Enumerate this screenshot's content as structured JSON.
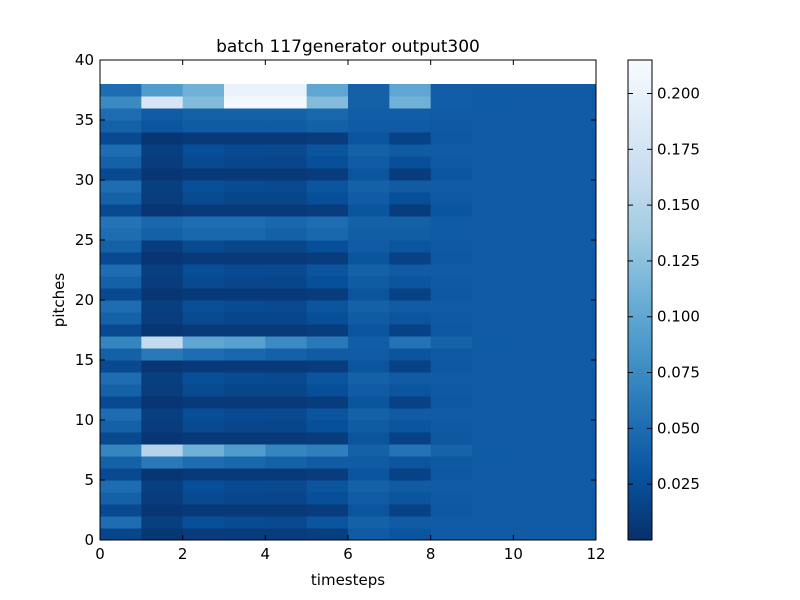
{
  "chart_data": {
    "type": "heatmap",
    "title": "batch 117generator output300",
    "xlabel": "timesteps",
    "ylabel": "pitches",
    "xlim": [
      0,
      12
    ],
    "ylim": [
      0,
      40
    ],
    "x_ticks": [
      0,
      2,
      4,
      6,
      8,
      10,
      12
    ],
    "y_ticks": [
      0,
      5,
      10,
      15,
      20,
      25,
      30,
      35,
      40
    ],
    "colormap": "Blues_r",
    "colorbar": {
      "min": 0.0,
      "max": 0.215,
      "ticks": [
        0.025,
        0.05,
        0.075,
        0.1,
        0.125,
        0.15,
        0.175,
        0.2
      ],
      "tick_labels": [
        "0.025",
        "0.050",
        "0.075",
        "0.100",
        "0.125",
        "0.150",
        "0.175",
        "0.200"
      ]
    },
    "grid": false,
    "rows_bottom_to_top": [
      [
        0.018,
        0.006,
        0.01,
        0.01,
        0.01,
        0.012,
        0.035,
        0.03,
        0.035,
        0.035,
        0.035,
        0.035
      ],
      [
        0.05,
        0.012,
        0.025,
        0.022,
        0.02,
        0.03,
        0.04,
        0.035,
        0.035,
        0.035,
        0.035,
        0.035
      ],
      [
        0.02,
        0.005,
        0.008,
        0.008,
        0.008,
        0.01,
        0.03,
        0.015,
        0.033,
        0.035,
        0.035,
        0.035
      ],
      [
        0.04,
        0.01,
        0.02,
        0.018,
        0.018,
        0.025,
        0.035,
        0.03,
        0.034,
        0.035,
        0.035,
        0.035
      ],
      [
        0.05,
        0.012,
        0.025,
        0.022,
        0.02,
        0.03,
        0.04,
        0.035,
        0.035,
        0.035,
        0.035,
        0.035
      ],
      [
        0.02,
        0.005,
        0.008,
        0.008,
        0.008,
        0.01,
        0.03,
        0.015,
        0.033,
        0.035,
        0.035,
        0.035
      ],
      [
        0.04,
        0.06,
        0.05,
        0.045,
        0.04,
        0.035,
        0.035,
        0.03,
        0.034,
        0.035,
        0.035,
        0.035
      ],
      [
        0.07,
        0.15,
        0.11,
        0.09,
        0.07,
        0.065,
        0.04,
        0.055,
        0.042,
        0.036,
        0.035,
        0.035
      ],
      [
        0.02,
        0.005,
        0.008,
        0.008,
        0.008,
        0.01,
        0.03,
        0.015,
        0.033,
        0.035,
        0.035,
        0.035
      ],
      [
        0.04,
        0.01,
        0.02,
        0.018,
        0.018,
        0.025,
        0.035,
        0.03,
        0.034,
        0.035,
        0.035,
        0.035
      ],
      [
        0.05,
        0.012,
        0.025,
        0.022,
        0.02,
        0.03,
        0.04,
        0.035,
        0.035,
        0.035,
        0.035,
        0.035
      ],
      [
        0.02,
        0.005,
        0.008,
        0.008,
        0.008,
        0.01,
        0.03,
        0.015,
        0.033,
        0.035,
        0.035,
        0.035
      ],
      [
        0.04,
        0.01,
        0.02,
        0.018,
        0.018,
        0.025,
        0.035,
        0.03,
        0.034,
        0.035,
        0.035,
        0.035
      ],
      [
        0.05,
        0.012,
        0.025,
        0.022,
        0.02,
        0.03,
        0.04,
        0.035,
        0.035,
        0.035,
        0.035,
        0.035
      ],
      [
        0.02,
        0.005,
        0.008,
        0.008,
        0.008,
        0.01,
        0.03,
        0.015,
        0.033,
        0.035,
        0.035,
        0.035
      ],
      [
        0.04,
        0.06,
        0.05,
        0.045,
        0.04,
        0.035,
        0.035,
        0.03,
        0.034,
        0.035,
        0.035,
        0.035
      ],
      [
        0.07,
        0.16,
        0.1,
        0.095,
        0.075,
        0.06,
        0.038,
        0.055,
        0.042,
        0.036,
        0.035,
        0.035
      ],
      [
        0.02,
        0.005,
        0.008,
        0.008,
        0.008,
        0.01,
        0.03,
        0.015,
        0.033,
        0.035,
        0.035,
        0.035
      ],
      [
        0.04,
        0.01,
        0.02,
        0.018,
        0.018,
        0.025,
        0.035,
        0.03,
        0.034,
        0.035,
        0.035,
        0.035
      ],
      [
        0.05,
        0.012,
        0.025,
        0.022,
        0.02,
        0.03,
        0.04,
        0.035,
        0.035,
        0.035,
        0.035,
        0.035
      ],
      [
        0.02,
        0.005,
        0.008,
        0.008,
        0.008,
        0.01,
        0.03,
        0.015,
        0.033,
        0.035,
        0.035,
        0.035
      ],
      [
        0.04,
        0.01,
        0.02,
        0.018,
        0.018,
        0.025,
        0.035,
        0.03,
        0.034,
        0.035,
        0.035,
        0.035
      ],
      [
        0.05,
        0.012,
        0.025,
        0.022,
        0.02,
        0.03,
        0.04,
        0.035,
        0.035,
        0.035,
        0.035,
        0.035
      ],
      [
        0.02,
        0.005,
        0.008,
        0.008,
        0.008,
        0.01,
        0.03,
        0.015,
        0.033,
        0.035,
        0.035,
        0.035
      ],
      [
        0.04,
        0.01,
        0.02,
        0.018,
        0.018,
        0.025,
        0.035,
        0.03,
        0.034,
        0.035,
        0.035,
        0.035
      ],
      [
        0.05,
        0.04,
        0.045,
        0.045,
        0.04,
        0.045,
        0.038,
        0.038,
        0.035,
        0.035,
        0.035,
        0.035
      ],
      [
        0.055,
        0.045,
        0.05,
        0.05,
        0.045,
        0.05,
        0.04,
        0.04,
        0.036,
        0.035,
        0.035,
        0.035
      ],
      [
        0.02,
        0.005,
        0.008,
        0.008,
        0.008,
        0.01,
        0.03,
        0.01,
        0.03,
        0.035,
        0.035,
        0.035
      ],
      [
        0.04,
        0.01,
        0.02,
        0.018,
        0.018,
        0.025,
        0.035,
        0.025,
        0.034,
        0.035,
        0.035,
        0.035
      ],
      [
        0.05,
        0.012,
        0.025,
        0.022,
        0.02,
        0.03,
        0.04,
        0.035,
        0.035,
        0.035,
        0.035,
        0.035
      ],
      [
        0.02,
        0.005,
        0.008,
        0.008,
        0.008,
        0.01,
        0.03,
        0.01,
        0.03,
        0.035,
        0.035,
        0.035
      ],
      [
        0.04,
        0.01,
        0.02,
        0.018,
        0.018,
        0.025,
        0.035,
        0.025,
        0.034,
        0.035,
        0.035,
        0.035
      ],
      [
        0.05,
        0.012,
        0.025,
        0.022,
        0.02,
        0.03,
        0.04,
        0.035,
        0.035,
        0.035,
        0.035,
        0.035
      ],
      [
        0.02,
        0.005,
        0.008,
        0.008,
        0.008,
        0.01,
        0.03,
        0.015,
        0.033,
        0.035,
        0.035,
        0.035
      ],
      [
        0.04,
        0.03,
        0.035,
        0.035,
        0.035,
        0.04,
        0.035,
        0.035,
        0.034,
        0.035,
        0.035,
        0.035
      ],
      [
        0.05,
        0.035,
        0.04,
        0.04,
        0.04,
        0.045,
        0.038,
        0.038,
        0.035,
        0.035,
        0.035,
        0.035
      ],
      [
        0.075,
        0.18,
        0.12,
        0.21,
        0.21,
        0.12,
        0.04,
        0.11,
        0.038,
        0.036,
        0.035,
        0.035
      ],
      [
        0.05,
        0.09,
        0.11,
        0.2,
        0.2,
        0.1,
        0.04,
        0.1,
        0.037,
        0.035,
        0.035,
        0.035
      ]
    ]
  }
}
